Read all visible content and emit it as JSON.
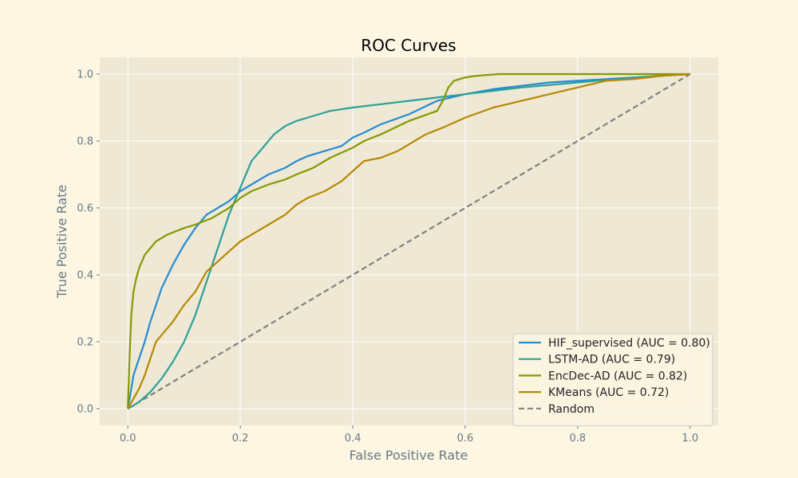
{
  "chart_data": {
    "type": "line",
    "title": "ROC Curves",
    "xlabel": "False Positive Rate",
    "ylabel": "True Positive Rate",
    "xlim": [
      -0.05,
      1.05
    ],
    "ylim": [
      -0.05,
      1.05
    ],
    "xticks": [
      0.0,
      0.2,
      0.4,
      0.6,
      0.8,
      1.0
    ],
    "yticks": [
      0.0,
      0.2,
      0.4,
      0.6,
      0.8,
      1.0
    ],
    "xtick_labels": [
      "0.0",
      "0.2",
      "0.4",
      "0.6",
      "0.8",
      "1.0"
    ],
    "ytick_labels": [
      "0.0",
      "0.2",
      "0.4",
      "0.6",
      "0.8",
      "1.0"
    ],
    "grid": true,
    "legend_position": "lower-right",
    "colors": {
      "page_background": "#fdf6e3",
      "plot_background": "#efe8d5",
      "grid": "#ffffff"
    },
    "series": [
      {
        "name": "HIF_supervised (AUC = 0.80)",
        "color": "#268bd2",
        "style": "solid",
        "x": [
          0.0,
          0.005,
          0.01,
          0.02,
          0.03,
          0.04,
          0.05,
          0.06,
          0.08,
          0.1,
          0.12,
          0.14,
          0.16,
          0.18,
          0.2,
          0.22,
          0.25,
          0.28,
          0.3,
          0.32,
          0.35,
          0.38,
          0.4,
          0.42,
          0.45,
          0.5,
          0.55,
          0.6,
          0.65,
          0.7,
          0.75,
          0.8,
          0.85,
          0.9,
          0.95,
          1.0
        ],
        "y": [
          0.0,
          0.05,
          0.1,
          0.15,
          0.2,
          0.26,
          0.31,
          0.36,
          0.43,
          0.49,
          0.54,
          0.58,
          0.6,
          0.62,
          0.65,
          0.67,
          0.7,
          0.72,
          0.74,
          0.755,
          0.77,
          0.785,
          0.81,
          0.825,
          0.85,
          0.88,
          0.92,
          0.94,
          0.955,
          0.965,
          0.975,
          0.98,
          0.985,
          0.99,
          0.995,
          1.0
        ]
      },
      {
        "name": "LSTM-AD (AUC = 0.79)",
        "color": "#2aa198",
        "style": "solid",
        "x": [
          0.0,
          0.01,
          0.02,
          0.04,
          0.06,
          0.08,
          0.1,
          0.12,
          0.14,
          0.16,
          0.18,
          0.2,
          0.22,
          0.24,
          0.26,
          0.28,
          0.3,
          0.33,
          0.36,
          0.4,
          0.45,
          0.5,
          0.55,
          0.6,
          0.65,
          0.7,
          0.8,
          0.9,
          1.0
        ],
        "y": [
          0.0,
          0.01,
          0.02,
          0.05,
          0.09,
          0.14,
          0.2,
          0.28,
          0.38,
          0.48,
          0.58,
          0.66,
          0.74,
          0.78,
          0.82,
          0.845,
          0.86,
          0.875,
          0.89,
          0.9,
          0.91,
          0.92,
          0.93,
          0.94,
          0.95,
          0.96,
          0.975,
          0.99,
          1.0
        ]
      },
      {
        "name": "EncDec-AD (AUC = 0.82)",
        "color": "#859900",
        "style": "solid",
        "x": [
          0.0,
          0.003,
          0.006,
          0.01,
          0.015,
          0.02,
          0.03,
          0.04,
          0.05,
          0.07,
          0.1,
          0.12,
          0.15,
          0.18,
          0.2,
          0.22,
          0.25,
          0.28,
          0.3,
          0.33,
          0.36,
          0.4,
          0.42,
          0.45,
          0.5,
          0.55,
          0.56,
          0.57,
          0.58,
          0.6,
          0.62,
          0.66,
          0.7,
          0.8,
          0.9,
          1.0
        ],
        "y": [
          0.0,
          0.15,
          0.28,
          0.35,
          0.39,
          0.42,
          0.46,
          0.48,
          0.5,
          0.52,
          0.54,
          0.55,
          0.57,
          0.6,
          0.63,
          0.65,
          0.67,
          0.685,
          0.7,
          0.72,
          0.75,
          0.78,
          0.8,
          0.82,
          0.86,
          0.89,
          0.92,
          0.96,
          0.98,
          0.99,
          0.995,
          1.0,
          1.0,
          1.0,
          1.0,
          1.0
        ]
      },
      {
        "name": "KMeans (AUC = 0.72)",
        "color": "#b58900",
        "style": "solid",
        "x": [
          0.0,
          0.01,
          0.02,
          0.03,
          0.04,
          0.05,
          0.06,
          0.08,
          0.1,
          0.12,
          0.14,
          0.16,
          0.18,
          0.2,
          0.22,
          0.25,
          0.28,
          0.3,
          0.32,
          0.35,
          0.38,
          0.4,
          0.42,
          0.45,
          0.48,
          0.5,
          0.53,
          0.56,
          0.6,
          0.65,
          0.7,
          0.75,
          0.8,
          0.85,
          0.9,
          0.95,
          1.0
        ],
        "y": [
          0.0,
          0.03,
          0.06,
          0.1,
          0.15,
          0.2,
          0.22,
          0.26,
          0.31,
          0.35,
          0.41,
          0.44,
          0.47,
          0.5,
          0.52,
          0.55,
          0.58,
          0.61,
          0.63,
          0.65,
          0.68,
          0.71,
          0.74,
          0.75,
          0.77,
          0.79,
          0.82,
          0.84,
          0.87,
          0.9,
          0.92,
          0.94,
          0.96,
          0.98,
          0.985,
          0.995,
          1.0
        ]
      },
      {
        "name": "Random",
        "color": "#808080",
        "style": "dashed",
        "x": [
          0.0,
          1.0
        ],
        "y": [
          0.0,
          1.0
        ]
      }
    ]
  }
}
